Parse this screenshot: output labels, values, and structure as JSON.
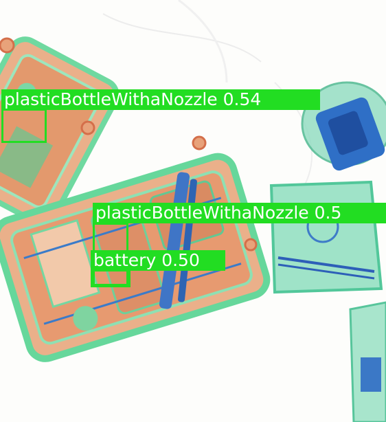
{
  "image": {
    "description_colors": {
      "background": "#fdfdfb",
      "organic_orange": "#e8a27a",
      "inorganic_green": "#5fd49a",
      "metal_blue": "#2d5fb8",
      "detection_green": "#22dd22"
    }
  },
  "detections": [
    {
      "label": "plasticBottleWithaNozzle",
      "score": "0.54"
    },
    {
      "label": "plasticBottleWithaNozzle",
      "score": "0.5"
    },
    {
      "label": "battery",
      "score": "0.50"
    }
  ]
}
